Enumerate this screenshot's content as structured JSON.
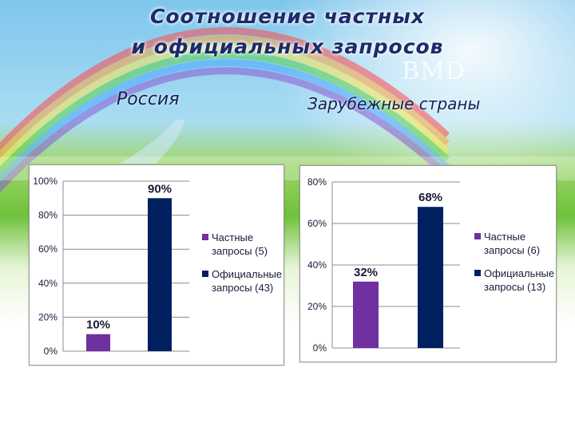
{
  "title": {
    "line1": "Соотношение частных",
    "line2": "и официальных запросов"
  },
  "logo": "BMD",
  "colors": {
    "private": "#7030a0",
    "official": "#002060",
    "title": "#1e2a6a"
  },
  "panels": {
    "left": {
      "subtitle": "Россия"
    },
    "right": {
      "subtitle": "Зарубежные страны"
    }
  },
  "chart_data": [
    {
      "type": "bar",
      "categories": [
        "Частные запросы (5)",
        "Официальные запросы (43)"
      ],
      "values": [
        10,
        90
      ],
      "data_labels": [
        "10%",
        "90%"
      ],
      "ylim": [
        0,
        100
      ],
      "yticks": [
        "0%",
        "20%",
        "40%",
        "60%",
        "80%",
        "100%"
      ],
      "grid": true,
      "legend_position": "right",
      "legend": [
        {
          "line1": "Частные",
          "line2": "запросы (5)",
          "color": "#7030a0"
        },
        {
          "line1": "Официальные",
          "line2": "запросы (43)",
          "color": "#002060"
        }
      ]
    },
    {
      "type": "bar",
      "categories": [
        "Частные запросы (6)",
        "Официальные запросы (13)"
      ],
      "values": [
        32,
        68
      ],
      "data_labels": [
        "32%",
        "68%"
      ],
      "ylim": [
        0,
        80
      ],
      "yticks": [
        "0%",
        "20%",
        "40%",
        "60%",
        "80%"
      ],
      "grid": true,
      "legend_position": "right",
      "legend": [
        {
          "line1": "Частные",
          "line2": "запросы (6)",
          "color": "#7030a0"
        },
        {
          "line1": "Официальные",
          "line2": "запросы (13)",
          "color": "#002060"
        }
      ]
    }
  ]
}
